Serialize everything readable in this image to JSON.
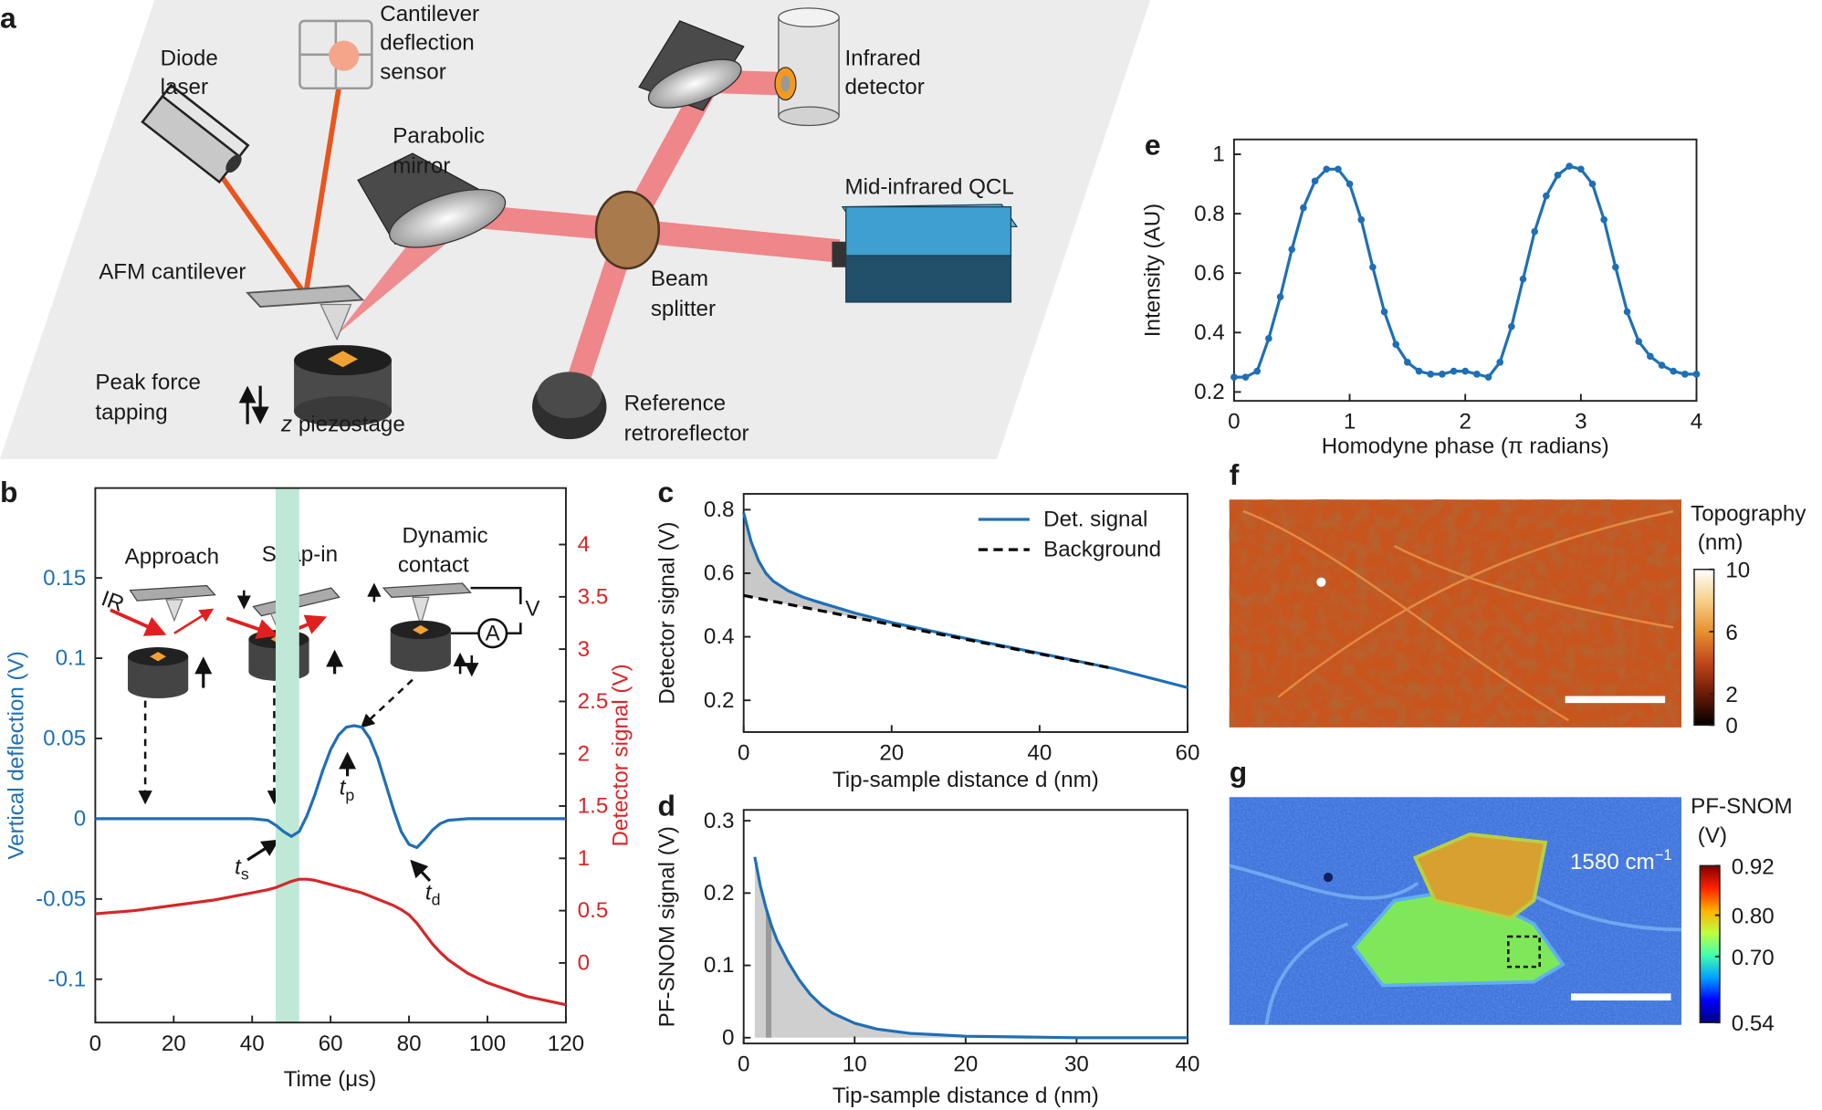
{
  "panel_labels": [
    "a",
    "b",
    "c",
    "d",
    "e",
    "f",
    "g"
  ],
  "diagram": {
    "cantilever_sensor": [
      "Cantilever",
      "deflection",
      "sensor"
    ],
    "diode_laser": [
      "Diode",
      "laser"
    ],
    "infrared_detector": [
      "Infrared",
      "detector"
    ],
    "parabolic_mirror": [
      "Parabolic",
      "mirror"
    ],
    "qcl": "Mid-infrared QCL",
    "afm_cantilever": "AFM cantilever",
    "beam_splitter": [
      "Beam",
      "splitter"
    ],
    "peak_force": [
      "Peak force",
      "tapping"
    ],
    "piezostage": {
      "italic": "z",
      "text": " piezostage"
    },
    "retroreflector": [
      "Reference",
      "retroreflector"
    ]
  },
  "chart_data": [
    {
      "type": "line",
      "xlabel": "Time (μs)",
      "ylabel": "Vertical deflection (V)",
      "y2label": "Detector signal (V)",
      "ycolor": "#1f6fb4",
      "y2color": "#d62728",
      "x": [
        0,
        10,
        20,
        30,
        40,
        44,
        46,
        48,
        50,
        52,
        54,
        56,
        58,
        60,
        62,
        64,
        66,
        68,
        70,
        72,
        74,
        76,
        78,
        80,
        82,
        84,
        86,
        88,
        90,
        95,
        100,
        110,
        120
      ],
      "series": [
        {
          "name": "Vertical deflection",
          "color": "#1f6fb4",
          "axis": "y",
          "values": [
            0,
            0,
            0,
            0,
            0,
            -0.001,
            -0.004,
            -0.008,
            -0.011,
            -0.008,
            0.002,
            0.015,
            0.03,
            0.043,
            0.052,
            0.057,
            0.058,
            0.057,
            0.05,
            0.038,
            0.022,
            0.006,
            -0.008,
            -0.016,
            -0.018,
            -0.013,
            -0.007,
            -0.003,
            -0.001,
            0,
            0,
            0,
            0
          ]
        },
        {
          "name": "Detector signal",
          "color": "#d62728",
          "axis": "y2",
          "values": [
            0.47,
            0.5,
            0.55,
            0.6,
            0.67,
            0.7,
            0.72,
            0.75,
            0.78,
            0.8,
            0.8,
            0.79,
            0.77,
            0.75,
            0.73,
            0.71,
            0.69,
            0.67,
            0.64,
            0.61,
            0.58,
            0.55,
            0.51,
            0.46,
            0.38,
            0.28,
            0.18,
            0.1,
            0.03,
            -0.1,
            -0.19,
            -0.32,
            -0.4
          ]
        }
      ],
      "xlim": [
        0,
        120
      ],
      "xticks": [
        0,
        20,
        40,
        60,
        80,
        100,
        120
      ],
      "ylim": [
        -0.127,
        0.206
      ],
      "yticks": [
        -0.1,
        -0.05,
        0,
        0.05,
        0.1,
        0.15
      ],
      "y2lim": [
        -0.57,
        4.54
      ],
      "y2ticks": [
        0,
        0.5,
        1,
        1.5,
        2,
        2.5,
        3,
        3.5,
        4
      ],
      "highlight": [
        46,
        52
      ],
      "highlight_color": "#bfe8d6",
      "insets": {
        "approach": "Approach",
        "snap_in": "Snap-in",
        "dynamic_contact": [
          "Dynamic",
          "contact"
        ],
        "ir": "IR",
        "v": "V",
        "a": "A"
      },
      "annotations": [
        {
          "main": "t",
          "sub": "p"
        },
        {
          "main": "t",
          "sub": "s"
        },
        {
          "main": "t",
          "sub": "d"
        }
      ]
    },
    {
      "type": "line",
      "xlabel": "Tip-sample distance d (nm)",
      "ylabel": "Detector signal (V)",
      "series": [
        {
          "name": "Det. signal",
          "color": "#1f6fb4",
          "style": "solid",
          "x": [
            0,
            1,
            2,
            3,
            4,
            6,
            8,
            10,
            15,
            20,
            30,
            40,
            50,
            55,
            60
          ],
          "values": [
            0.79,
            0.7,
            0.64,
            0.6,
            0.575,
            0.545,
            0.525,
            0.51,
            0.475,
            0.445,
            0.395,
            0.348,
            0.3,
            0.27,
            0.24
          ]
        },
        {
          "name": "Background",
          "color": "#000000",
          "style": "dashed",
          "x": [
            0,
            50
          ],
          "values": [
            0.53,
            0.3
          ]
        }
      ],
      "fill_between": "#c8c8c8",
      "xlim": [
        0,
        60
      ],
      "xticks": [
        0,
        20,
        40,
        60
      ],
      "ylim": [
        0.1,
        0.85
      ],
      "yticks": [
        0.2,
        0.4,
        0.6,
        0.8
      ],
      "legend": "upper right"
    },
    {
      "type": "line",
      "xlabel": "Tip-sample distance d (nm)",
      "ylabel": "PF-SNOM signal (V)",
      "series": [
        {
          "name": "PF-SNOM signal",
          "color": "#1f6fb4",
          "fill": "#cfcfcf",
          "x": [
            1,
            1.5,
            2,
            2.5,
            3,
            4,
            5,
            6,
            7,
            8,
            10,
            12,
            15,
            20,
            25,
            30,
            40
          ],
          "values": [
            0.25,
            0.21,
            0.18,
            0.155,
            0.135,
            0.105,
            0.08,
            0.06,
            0.045,
            0.034,
            0.02,
            0.012,
            0.006,
            0.002,
            0.001,
            0,
            0
          ]
        }
      ],
      "highlight_under": [
        2,
        2.5
      ],
      "highlight_color": "#9a9a9a",
      "xlim": [
        0,
        40
      ],
      "xticks": [
        0,
        10,
        20,
        30,
        40
      ],
      "ylim": [
        -0.008,
        0.315
      ],
      "yticks": [
        0,
        0.1,
        0.2,
        0.3
      ]
    },
    {
      "type": "line",
      "xlabel": "Homodyne phase (π radians)",
      "ylabel": "Intensity (AU)",
      "x": [
        0,
        0.1,
        0.2,
        0.3,
        0.4,
        0.5,
        0.6,
        0.7,
        0.8,
        0.9,
        1,
        1.1,
        1.2,
        1.3,
        1.4,
        1.5,
        1.6,
        1.7,
        1.8,
        1.9,
        2,
        2.1,
        2.2,
        2.3,
        2.4,
        2.5,
        2.6,
        2.7,
        2.8,
        2.9,
        3,
        3.1,
        3.2,
        3.3,
        3.4,
        3.5,
        3.6,
        3.7,
        3.8,
        3.9,
        4
      ],
      "series": [
        {
          "name": "Intensity",
          "color": "#1f6fb4",
          "markers": true,
          "values": [
            0.25,
            0.25,
            0.27,
            0.38,
            0.52,
            0.68,
            0.82,
            0.91,
            0.95,
            0.95,
            0.9,
            0.78,
            0.62,
            0.47,
            0.36,
            0.3,
            0.27,
            0.26,
            0.26,
            0.27,
            0.27,
            0.26,
            0.25,
            0.3,
            0.42,
            0.58,
            0.74,
            0.86,
            0.93,
            0.96,
            0.95,
            0.9,
            0.78,
            0.62,
            0.47,
            0.37,
            0.32,
            0.29,
            0.27,
            0.26,
            0.26
          ]
        }
      ],
      "xlim": [
        0,
        4
      ],
      "xticks": [
        0,
        1,
        2,
        3,
        4
      ],
      "ylim": [
        0.17,
        1.05
      ],
      "yticks": [
        0.2,
        0.4,
        0.6,
        0.8,
        1
      ]
    },
    {
      "type": "image",
      "colorbar_title": [
        "Topography",
        "(nm)"
      ],
      "colormap": [
        "#000000",
        "#6b1a08",
        "#c0461a",
        "#e8902e",
        "#f7d08a",
        "#ffffff"
      ],
      "clim": [
        0,
        10
      ],
      "cticks": [
        0,
        2,
        6,
        10
      ]
    },
    {
      "type": "image",
      "colorbar_title": [
        "PF-SNOM",
        "(V)"
      ],
      "colormap": [
        "#00007f",
        "#0000ff",
        "#00a0ff",
        "#40ffb0",
        "#c0ff40",
        "#ffb000",
        "#ff2000",
        "#7f0000"
      ],
      "clim": [
        0.54,
        0.92
      ],
      "cticks": [
        0.54,
        {
          "value": 0.7,
          "label": "0.70"
        },
        {
          "value": 0.8,
          "label": "0.80"
        },
        0.92
      ],
      "annotation": {
        "main": "1580 cm",
        "sup": "−1"
      }
    }
  ]
}
